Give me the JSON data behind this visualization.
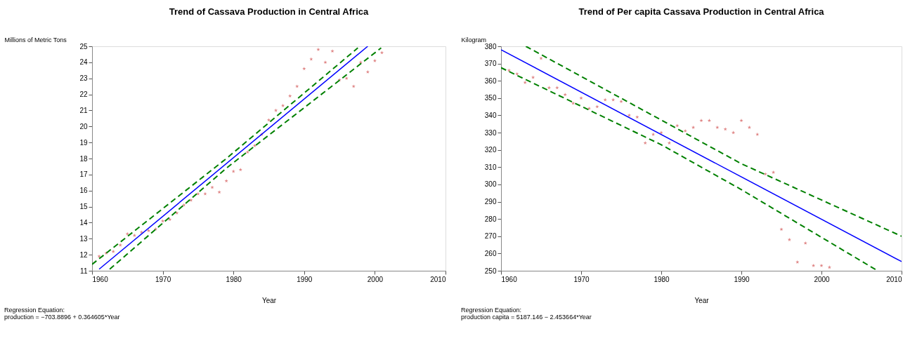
{
  "chart_data": [
    {
      "type": "scatter",
      "title": "Trend of Cassava Production in Central Africa",
      "xlabel": "Year",
      "ylabel": "Millions of Metric Tons",
      "annotations": [
        "Regression Equation:",
        "production =  −703.8896 +  0.364605*Year"
      ],
      "xlim": [
        1960,
        2010
      ],
      "ylim": [
        11,
        25
      ],
      "xticks": [
        1960,
        1970,
        1980,
        1990,
        2000,
        2010
      ],
      "yticks": [
        11,
        12,
        13,
        14,
        15,
        16,
        17,
        18,
        19,
        20,
        21,
        22,
        23,
        24,
        25
      ],
      "series": [
        {
          "marker": "star",
          "color": "#e08888",
          "x": [
            1961,
            1962,
            1963,
            1964,
            1965,
            1966,
            1967,
            1968,
            1969,
            1970,
            1971,
            1972,
            1973,
            1974,
            1975,
            1976,
            1977,
            1978,
            1979,
            1980,
            1981,
            1982,
            1983,
            1984,
            1985,
            1986,
            1987,
            1988,
            1989,
            1990,
            1991,
            1992,
            1993,
            1994,
            1995,
            1996,
            1997,
            1998,
            1999,
            2000,
            2001
          ],
          "values": [
            11.9,
            12.1,
            12.2,
            12.6,
            13.3,
            13.2,
            13.4,
            13.5,
            13.6,
            14.1,
            14.2,
            14.6,
            15.1,
            15.4,
            15.8,
            15.8,
            16.2,
            15.9,
            16.6,
            17.2,
            17.3,
            18.4,
            18.8,
            19.5,
            20.4,
            21.0,
            21.3,
            21.9,
            22.5,
            23.6,
            24.2,
            24.8,
            24.0,
            24.7,
            22.9,
            23.0,
            22.5,
            24.0,
            23.4,
            24.1,
            24.6
          ]
        },
        {
          "type": "line",
          "line_style": "solid",
          "marker": "none",
          "color": "#0000ff",
          "x": [
            1961,
            1999
          ],
          "values": [
            11.1,
            25
          ]
        },
        {
          "type": "line",
          "line_style": "dashed",
          "marker": "none",
          "color": "#008000",
          "x": [
            1960,
            1979,
            1997.6
          ],
          "values": [
            11.4,
            18.0,
            24.9
          ]
        },
        {
          "type": "line",
          "line_style": "dashed",
          "marker": "none",
          "color": "#008000",
          "x": [
            1962.5,
            1979,
            2000.9
          ],
          "values": [
            11.1,
            17.4,
            24.9
          ]
        }
      ]
    },
    {
      "type": "scatter",
      "title": "Trend of Per capita Cassava Production in Central Africa",
      "xlabel": "Year",
      "ylabel": "Kilogram",
      "annotations": [
        "Regression Equation:",
        "production capita =   5187.146  −  2.453664*Year"
      ],
      "xlim": [
        1960,
        2010
      ],
      "ylim": [
        250,
        380
      ],
      "xticks": [
        1960,
        1970,
        1980,
        1990,
        2000,
        2010
      ],
      "yticks": [
        250,
        260,
        270,
        280,
        290,
        300,
        310,
        320,
        330,
        340,
        350,
        360,
        370,
        380
      ],
      "series": [
        {
          "marker": "star",
          "color": "#e08888",
          "x": [
            1961,
            1962,
            1963,
            1964,
            1965,
            1966,
            1967,
            1968,
            1969,
            1970,
            1971,
            1972,
            1973,
            1974,
            1975,
            1976,
            1977,
            1978,
            1979,
            1980,
            1981,
            1982,
            1983,
            1984,
            1985,
            1986,
            1987,
            1988,
            1989,
            1990,
            1991,
            1992,
            1993,
            1994,
            1995,
            1996,
            1997,
            1998,
            1999,
            2000,
            2001
          ],
          "values": [
            366,
            364,
            359,
            362,
            373,
            356,
            356,
            352,
            347,
            350,
            344,
            345,
            349,
            349,
            348,
            340,
            339,
            324,
            329,
            330,
            324,
            334,
            331,
            333,
            337,
            337,
            333,
            332,
            330,
            337,
            333,
            329,
            306,
            307,
            274,
            268,
            255,
            266,
            253,
            253,
            252
          ]
        },
        {
          "type": "line",
          "line_style": "solid",
          "marker": "none",
          "color": "#0000ff",
          "x": [
            1960,
            2010
          ],
          "values": [
            378,
            255.3
          ]
        },
        {
          "type": "line",
          "line_style": "dashed",
          "marker": "none",
          "color": "#008000",
          "x": [
            1963.1,
            1990,
            2010
          ],
          "values": [
            380,
            312,
            270
          ]
        },
        {
          "type": "line",
          "line_style": "dashed",
          "marker": "none",
          "color": "#008000",
          "x": [
            1960,
            1980,
            1990,
            2006.9
          ],
          "values": [
            367.6,
            323,
            297,
            250.3
          ]
        }
      ]
    }
  ]
}
